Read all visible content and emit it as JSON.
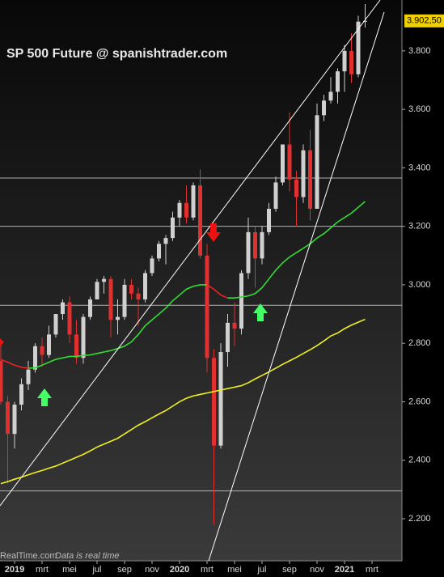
{
  "chart_data": {
    "type": "candlestick",
    "title": "SP 500 Future @ spanishtrader.com",
    "watermark": "RealTime.com",
    "watermark_note": "Data is real time",
    "categories": [
      null,
      null,
      "2019",
      null,
      null,
      null,
      "mrt",
      null,
      null,
      null,
      "mei",
      null,
      null,
      null,
      "jul",
      null,
      null,
      null,
      "sep",
      null,
      null,
      null,
      "nov",
      null,
      null,
      null,
      "2020",
      null,
      null,
      null,
      "mrt",
      null,
      null,
      null,
      "mei",
      null,
      null,
      null,
      "jul",
      null,
      null,
      null,
      "sep",
      null,
      null,
      null,
      "nov",
      null,
      null,
      null,
      "2021",
      null,
      null,
      null,
      "mrt"
    ],
    "open": [
      2740,
      2600,
      2490,
      2590,
      2660,
      2710,
      2790,
      2760,
      2830,
      2900,
      2940,
      2830,
      2750,
      2890,
      2950,
      3010,
      3020,
      2880,
      2890,
      3000,
      2970,
      2950,
      3040,
      3090,
      3140,
      3160,
      3230,
      3280,
      3230,
      3340,
      3100,
      2750,
      2450,
      2770,
      2870,
      2850,
      3040,
      3180,
      3090,
      3180,
      3260,
      3350,
      3480,
      3360,
      3300,
      3460,
      3260,
      3580,
      3630,
      3660,
      3730,
      3800,
      3720,
      3900,
      null
    ],
    "high": [
      2800,
      2620,
      2600,
      2680,
      2740,
      2800,
      2820,
      2860,
      2900,
      2950,
      2960,
      2880,
      2900,
      2960,
      3020,
      3030,
      3030,
      2950,
      3020,
      3020,
      2990,
      3050,
      3100,
      3150,
      3170,
      3250,
      3290,
      3340,
      3350,
      3395,
      3140,
      2780,
      2800,
      2900,
      2940,
      3050,
      3230,
      3200,
      3200,
      3280,
      3370,
      3480,
      3590,
      3390,
      3480,
      3530,
      3620,
      3650,
      3710,
      3740,
      3820,
      3860,
      3920,
      3960,
      null
    ],
    "low": [
      2590,
      2320,
      2440,
      2570,
      2640,
      2700,
      2720,
      2750,
      2820,
      2880,
      2800,
      2730,
      2730,
      2880,
      2950,
      2970,
      2820,
      2830,
      2880,
      2950,
      2860,
      2940,
      3030,
      3080,
      3070,
      3150,
      3200,
      3210,
      3220,
      3090,
      2700,
      2180,
      2440,
      2720,
      2790,
      2830,
      3020,
      2990,
      3070,
      3170,
      3250,
      3340,
      3320,
      3200,
      3280,
      3220,
      3260,
      3560,
      3620,
      3620,
      3660,
      3690,
      3710,
      3880,
      null
    ],
    "close": [
      2600,
      2490,
      2590,
      2660,
      2710,
      2790,
      2760,
      2830,
      2900,
      2940,
      2830,
      2750,
      2890,
      2950,
      3010,
      3020,
      2880,
      2890,
      3000,
      2970,
      2950,
      3040,
      3090,
      3140,
      3160,
      3230,
      3280,
      3230,
      3340,
      3100,
      2750,
      2450,
      2770,
      2870,
      2850,
      3040,
      3180,
      3090,
      3180,
      3260,
      3350,
      3480,
      3360,
      3300,
      3460,
      3260,
      3580,
      3630,
      3660,
      3730,
      3800,
      3720,
      3900,
      3902.5,
      null
    ],
    "up_color": "#d0d0d0",
    "down_color": "#e03030",
    "series": [
      {
        "color": "#33dd33",
        "falling_color": "#ee2222",
        "values": [
          2745,
          2735,
          2725,
          2718,
          2715,
          2716,
          2725,
          2735,
          2745,
          2750,
          2755,
          2755,
          2758,
          2760,
          2765,
          2770,
          2775,
          2782,
          2790,
          2805,
          2830,
          2860,
          2880,
          2900,
          2920,
          2945,
          2965,
          2985,
          2995,
          3000,
          3000,
          2985,
          2965,
          2955,
          2955,
          2958,
          2962,
          2970,
          2990,
          3020,
          3050,
          3075,
          3095,
          3110,
          3125,
          3140,
          3160,
          3175,
          3195,
          3215,
          3230,
          3245,
          3265,
          3285,
          null
        ]
      },
      {
        "color": "#f0f020",
        "values": [
          2320,
          2327,
          2335,
          2342,
          2350,
          2358,
          2365,
          2373,
          2380,
          2390,
          2400,
          2410,
          2420,
          2432,
          2445,
          2455,
          2465,
          2475,
          2490,
          2505,
          2520,
          2532,
          2545,
          2558,
          2570,
          2585,
          2600,
          2612,
          2620,
          2625,
          2630,
          2635,
          2640,
          2645,
          2650,
          2655,
          2665,
          2678,
          2690,
          2702,
          2715,
          2728,
          2740,
          2752,
          2765,
          2778,
          2792,
          2808,
          2825,
          2835,
          2850,
          2862,
          2872,
          2882,
          null
        ]
      }
    ],
    "hlines": [
      3365,
      3200,
      2930,
      2295
    ],
    "last": {
      "value": 3902.5,
      "label": "3.902,50"
    },
    "ylim": [
      2056,
      3974
    ],
    "yticks": [
      {
        "value": 2200,
        "label": "2.200"
      },
      {
        "value": 2400,
        "label": "2.400"
      },
      {
        "value": 2600,
        "label": "2.600"
      },
      {
        "value": 2800,
        "label": "2.800"
      },
      {
        "value": 3000,
        "label": "3.000"
      },
      {
        "value": 3200,
        "label": "3.200"
      },
      {
        "value": 3400,
        "label": "3.400"
      },
      {
        "value": 3600,
        "label": "3.600"
      },
      {
        "value": 3800,
        "label": "3.800"
      }
    ]
  }
}
